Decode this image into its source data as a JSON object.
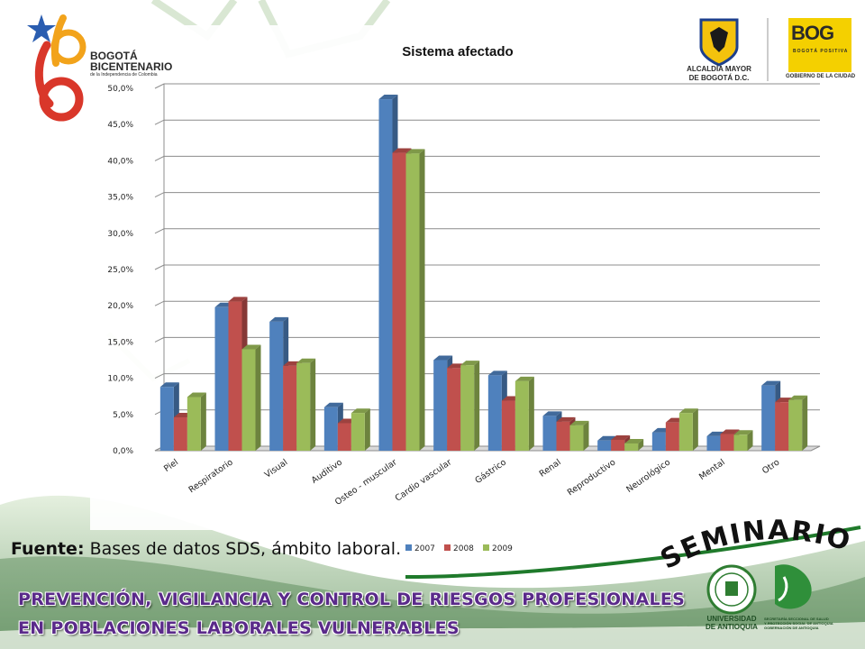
{
  "logos": {
    "left_line1": "BOGOTÁ",
    "left_line2": "BICENTENARIO",
    "left_line3": "de la Independencia de Colombia",
    "alcaldia_line1": "ALCALDÍA MAYOR",
    "alcaldia_line2": "DE BOGOTÁ D.C.",
    "bog_main": "BOG",
    "bog_sub": "BOGOTÁ POSITIVA",
    "bog_caption": "GOBIERNO DE LA CIUDAD",
    "udea_line1": "UNIVERSIDAD",
    "udea_line2": "DE ANTIOQUIA",
    "ssa_line1": "SECRETARÍA SECCIONAL DE SALUD",
    "ssa_line2": "Y PROTECCIÓN SOCIAL DE ANTIOQUIA",
    "ssa_line3": "GOBERNACIÓN DE ANTIOQUIA"
  },
  "seminario": "SEMINARIO",
  "source": {
    "label": "Fuente:",
    "text": "Bases de datos SDS, ámbito laboral."
  },
  "banner": {
    "line1": "PREVENCIÓN, VIGILANCIA Y CONTROL DE RIESGOS PROFESIONALES",
    "line2": "EN  POBLACIONES LABORALES VULNERABLES"
  },
  "colors": {
    "2007": "#4f81bd",
    "2008": "#c0504d",
    "2009": "#9bbb59"
  },
  "chart_data": {
    "type": "bar",
    "title": "Sistema afectado",
    "categories": [
      "Piel",
      "Respiratorio",
      "Visual",
      "Auditivo",
      "Osteo - muscular",
      "Cardio vascular",
      "Gástrico",
      "Renal",
      "Reproductivo",
      "Neurológico",
      "Mental",
      "Otro"
    ],
    "series": [
      {
        "name": "2007",
        "values": [
          8.8,
          19.8,
          17.8,
          6.0,
          48.5,
          12.5,
          10.4,
          4.8,
          1.4,
          2.5,
          2.0,
          9.0
        ]
      },
      {
        "name": "2008",
        "values": [
          4.6,
          20.6,
          11.7,
          3.8,
          41.1,
          11.4,
          6.9,
          4.0,
          1.5,
          3.9,
          2.3,
          6.7
        ]
      },
      {
        "name": "2009",
        "values": [
          7.4,
          14.0,
          12.1,
          5.2,
          41.0,
          11.8,
          9.6,
          3.5,
          1.0,
          5.2,
          2.2,
          7.0
        ]
      }
    ],
    "yticks": [
      "0,0%",
      "5,0%",
      "10,0%",
      "15,0%",
      "20,0%",
      "25,0%",
      "30,0%",
      "35,0%",
      "40,0%",
      "45,0%",
      "50,0%"
    ],
    "ylim": [
      0,
      50
    ],
    "grid": true,
    "legend": "bottom"
  }
}
